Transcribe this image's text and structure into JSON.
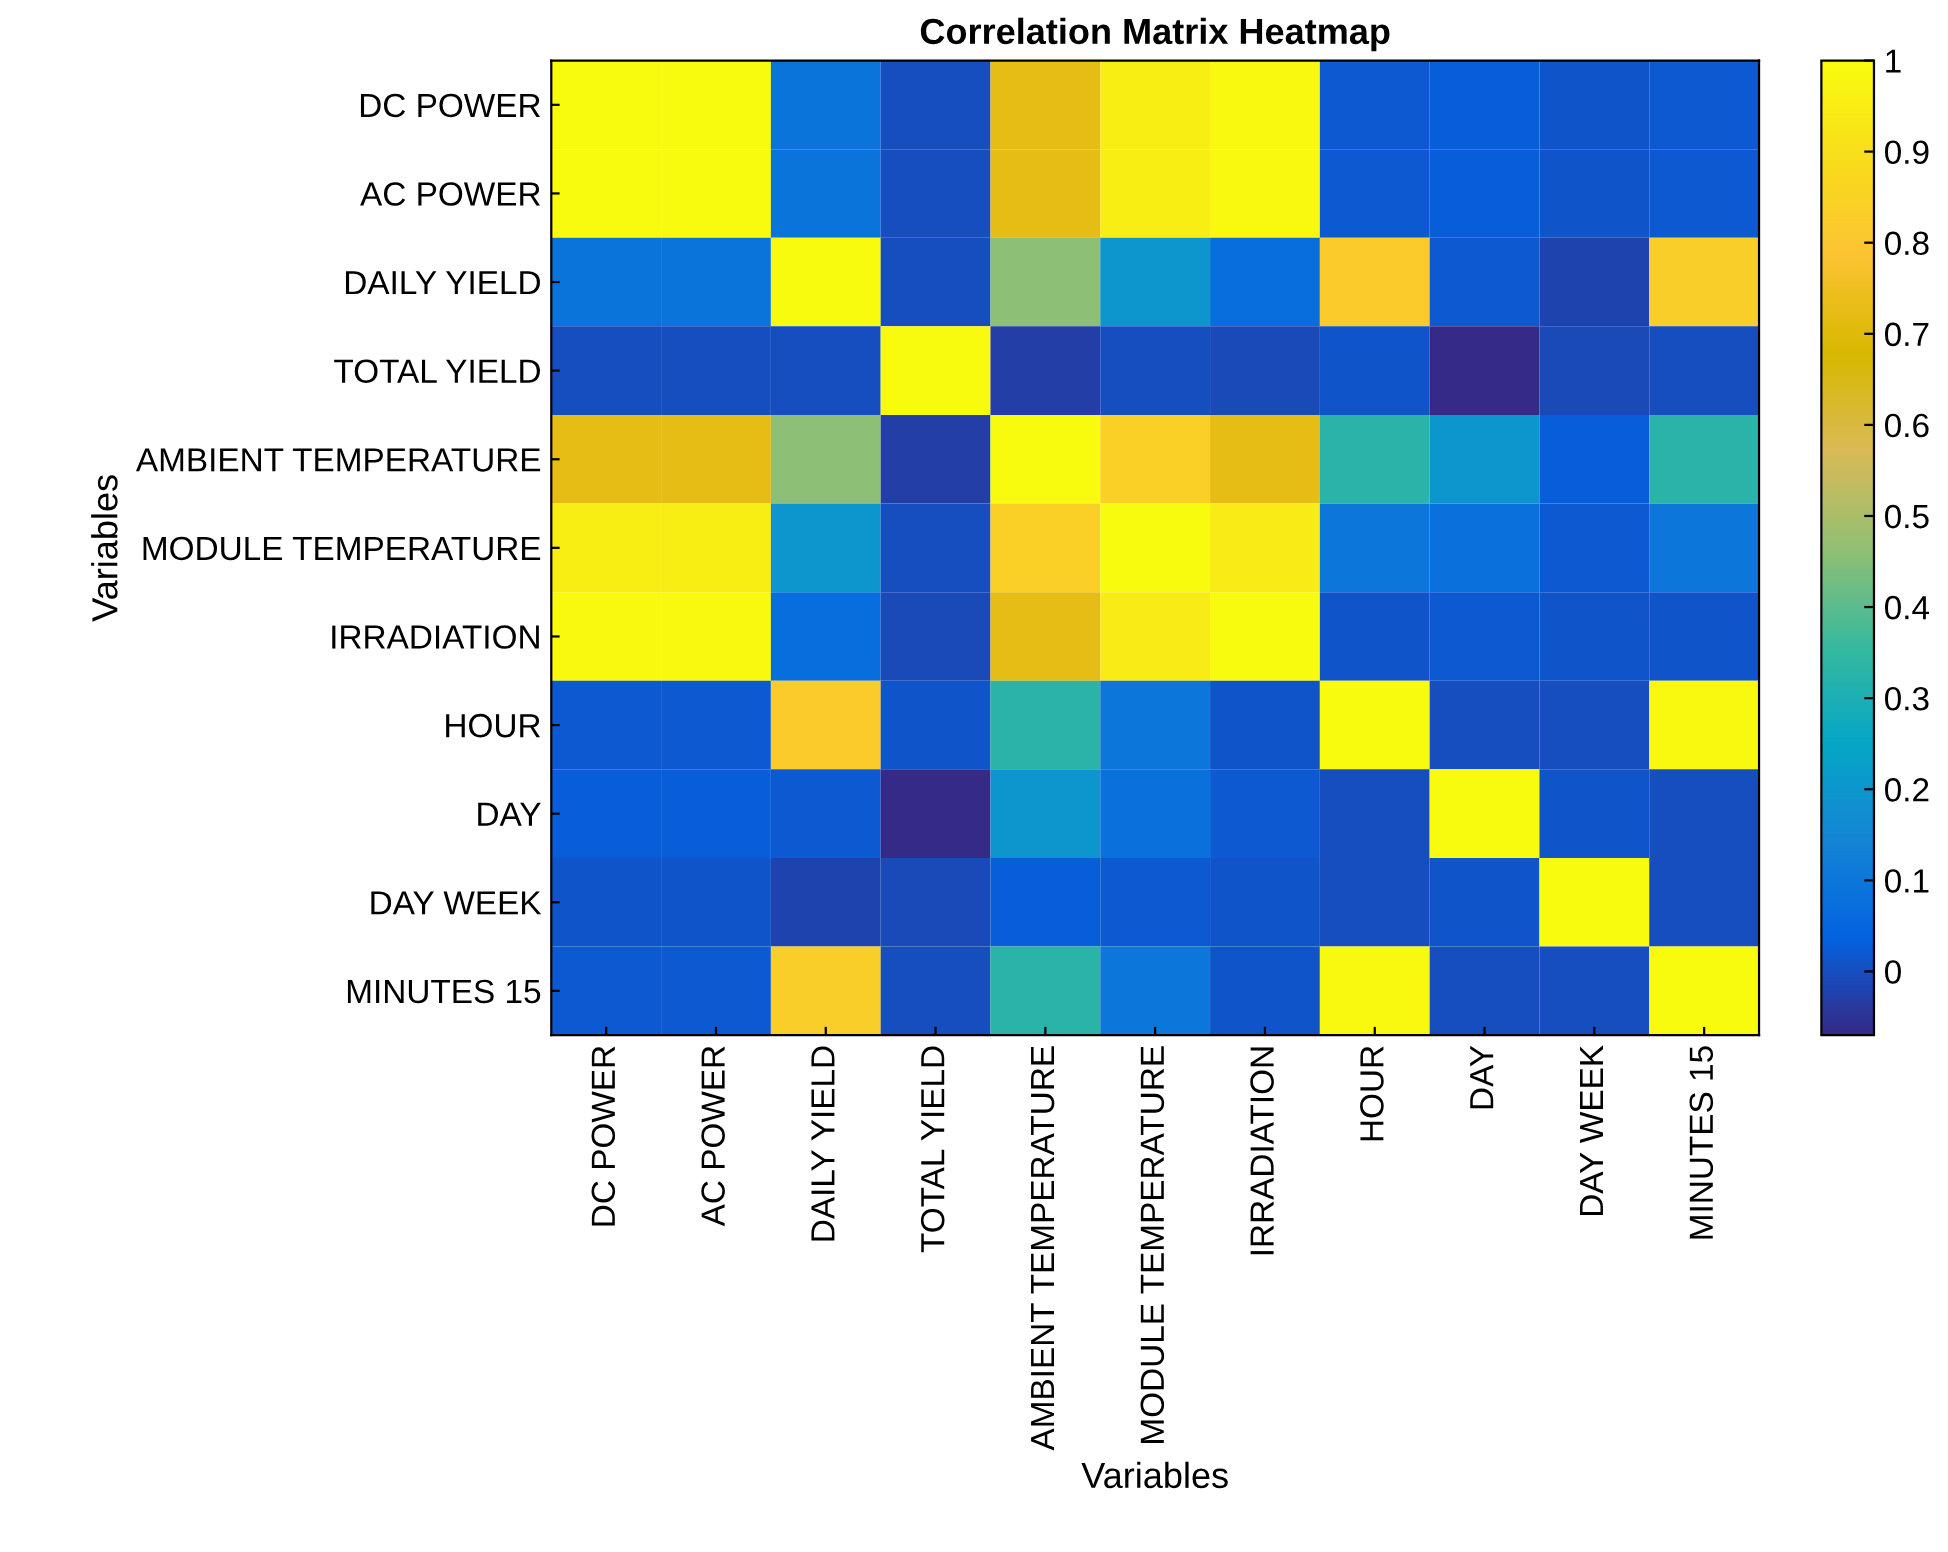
{
  "chart_data": {
    "type": "heatmap",
    "title": "Correlation Matrix Heatmap",
    "xlabel": "Variables",
    "ylabel": "Variables",
    "categories": [
      "DC POWER",
      "AC POWER",
      "DAILY YIELD",
      "TOTAL YIELD",
      "AMBIENT TEMPERATURE",
      "MODULE TEMPERATURE",
      "IRRADIATION",
      "HOUR",
      "DAY",
      "DAY WEEK",
      "MINUTES 15"
    ],
    "y_categories": [
      "DC POWER",
      "AC POWER",
      "DAILY YIELD",
      "TOTAL YIELD",
      "AMBIENT TEMPERATURE",
      "MODULE TEMPERATURE",
      "IRRADIATION",
      "HOUR",
      "DAY",
      "DAY WEEK",
      "MINUTES 15"
    ],
    "cells": [
      [
        1,
        1,
        0.09,
        0.0,
        0.72,
        0.95,
        0.99,
        0.02,
        0.03,
        0.01,
        0.02
      ],
      [
        1,
        1,
        0.09,
        0.0,
        0.72,
        0.95,
        0.99,
        0.02,
        0.03,
        0.01,
        0.02
      ],
      [
        0.09,
        0.09,
        1,
        0.0,
        0.46,
        0.2,
        0.07,
        0.82,
        0.02,
        -0.02,
        0.83
      ],
      [
        0.0,
        0.0,
        0.0,
        1,
        -0.03,
        0.0,
        -0.01,
        0.01,
        -0.07,
        -0.01,
        0.0
      ],
      [
        0.72,
        0.72,
        0.46,
        -0.03,
        1,
        0.84,
        0.72,
        0.33,
        0.2,
        0.03,
        0.33
      ],
      [
        0.95,
        0.95,
        0.2,
        0.0,
        0.84,
        1,
        0.94,
        0.1,
        0.08,
        0.02,
        0.1
      ],
      [
        0.99,
        0.99,
        0.07,
        -0.01,
        0.72,
        0.94,
        1,
        0.01,
        0.02,
        0.01,
        0.01
      ],
      [
        0.02,
        0.02,
        0.82,
        0.01,
        0.33,
        0.1,
        0.01,
        1,
        0.0,
        0.0,
        0.99
      ],
      [
        0.03,
        0.03,
        0.02,
        -0.07,
        0.2,
        0.08,
        0.02,
        0.0,
        1,
        0.01,
        0.0
      ],
      [
        0.01,
        0.01,
        -0.02,
        -0.01,
        0.03,
        0.02,
        0.01,
        0.0,
        0.01,
        1,
        0.0
      ],
      [
        0.02,
        0.02,
        0.83,
        0.0,
        0.33,
        0.1,
        0.01,
        0.99,
        0.0,
        0.0,
        1
      ]
    ],
    "clim": [
      -0.07,
      1
    ],
    "cticks": [
      0,
      0.1,
      0.2,
      0.3,
      0.4,
      0.5,
      0.6,
      0.7,
      0.8,
      0.9,
      1
    ]
  }
}
